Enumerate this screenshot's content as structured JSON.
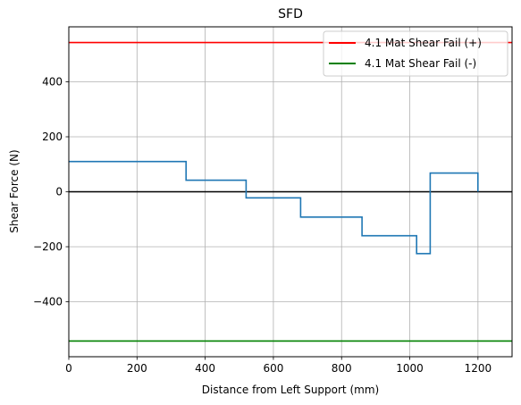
{
  "chart_data": {
    "type": "line",
    "title": "SFD",
    "xlabel": "Distance from Left Support (mm)",
    "ylabel": "Shear Force (N)",
    "xlim": [
      0,
      1300
    ],
    "ylim": [
      -600,
      600
    ],
    "xticks": [
      0,
      200,
      400,
      600,
      800,
      1000,
      1200
    ],
    "yticks": [
      -400,
      -200,
      0,
      200,
      400
    ],
    "grid": true,
    "legend_position": "top-right",
    "series": [
      {
        "name": "",
        "kind": "step",
        "color": "#1f77b4",
        "x": [
          0,
          344,
          344,
          520,
          520,
          680,
          680,
          860,
          860,
          1020,
          1020,
          1060,
          1060,
          1200,
          1200
        ],
        "y": [
          110,
          110,
          42,
          42,
          -22,
          -22,
          -92,
          -92,
          -160,
          -160,
          -225,
          -225,
          68,
          68,
          0
        ]
      },
      {
        "name": "4.1 Mat Shear Fail (+)",
        "kind": "hline",
        "color": "#ff0000",
        "y": 543
      },
      {
        "name": "4.1 Mat Shear Fail (-)",
        "kind": "hline",
        "color": "#008000",
        "y": -543
      },
      {
        "name": "",
        "kind": "hline",
        "color": "#000000",
        "y": 0
      }
    ]
  }
}
